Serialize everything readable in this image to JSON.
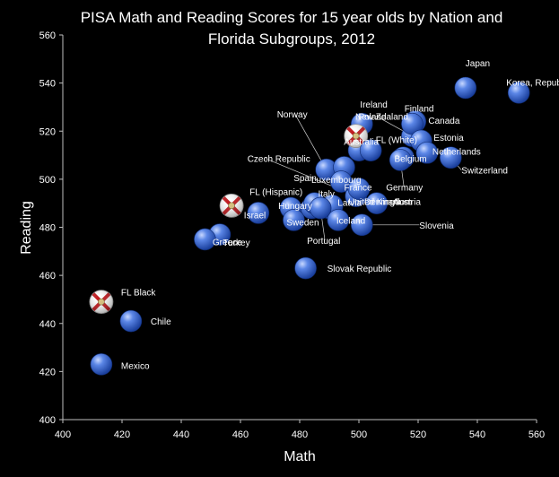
{
  "chart_data": {
    "type": "scatter",
    "title": "PISA Math and Reading Scores for 15 year olds by Nation and",
    "subtitle": "Florida Subgroups, 2012",
    "xlabel": "Math",
    "ylabel": "Reading",
    "xlim": [
      400,
      560
    ],
    "ylim": [
      400,
      560
    ],
    "xticks": [
      400,
      420,
      440,
      460,
      480,
      500,
      520,
      540,
      560
    ],
    "yticks": [
      400,
      420,
      440,
      460,
      480,
      500,
      520,
      540,
      560
    ],
    "grid": false,
    "legend": "none",
    "colors": {
      "point": "#3f6fd8",
      "flag_white": "#ffffff",
      "flag_red": "#c0161b",
      "background": "#000000"
    },
    "points": [
      {
        "label": "Japan",
        "x": 536,
        "y": 538,
        "type": "nation"
      },
      {
        "label": "Korea, Republic of",
        "x": 554,
        "y": 536,
        "type": "nation"
      },
      {
        "label": "Poland",
        "x": 518,
        "y": 518,
        "type": "nation"
      },
      {
        "label": "New Zealand",
        "x": 500,
        "y": 512,
        "type": "nation"
      },
      {
        "label": "Finland",
        "x": 519,
        "y": 524,
        "type": "nation"
      },
      {
        "label": "Ireland",
        "x": 501,
        "y": 523,
        "type": "nation"
      },
      {
        "label": "Canada",
        "x": 518,
        "y": 523,
        "type": "nation"
      },
      {
        "label": "FL (White)",
        "x": 499,
        "y": 518,
        "type": "florida"
      },
      {
        "label": "Estonia",
        "x": 521,
        "y": 516,
        "type": "nation"
      },
      {
        "label": "Netherlands",
        "x": 523,
        "y": 511,
        "type": "nation"
      },
      {
        "label": "Australia",
        "x": 504,
        "y": 512,
        "type": "nation"
      },
      {
        "label": "Belgium",
        "x": 515,
        "y": 509,
        "type": "nation"
      },
      {
        "label": "Switzerland",
        "x": 531,
        "y": 509,
        "type": "nation"
      },
      {
        "label": "Norway",
        "x": 489,
        "y": 504,
        "type": "nation"
      },
      {
        "label": "Czech Republic",
        "x": 499,
        "y": 493,
        "type": "nation"
      },
      {
        "label": "France",
        "x": 495,
        "y": 505,
        "type": "nation"
      },
      {
        "label": "Germany",
        "x": 514,
        "y": 508,
        "type": "nation"
      },
      {
        "label": "United Kingdom",
        "x": 494,
        "y": 499,
        "type": "nation"
      },
      {
        "label": "Denmark",
        "x": 500,
        "y": 496,
        "type": "nation"
      },
      {
        "label": "Spain",
        "x": 484,
        "y": 488,
        "type": "nation"
      },
      {
        "label": "Luxembourg",
        "x": 490,
        "y": 488,
        "type": "nation"
      },
      {
        "label": "FL (Hispanic)",
        "x": 457,
        "y": 489,
        "type": "florida"
      },
      {
        "label": "Italy",
        "x": 485,
        "y": 490,
        "type": "nation"
      },
      {
        "label": "Latvia",
        "x": 491,
        "y": 489,
        "type": "nation"
      },
      {
        "label": "Austria",
        "x": 506,
        "y": 490,
        "type": "nation"
      },
      {
        "label": "Hungary",
        "x": 477,
        "y": 488,
        "type": "nation"
      },
      {
        "label": "Israel",
        "x": 466,
        "y": 486,
        "type": "nation"
      },
      {
        "label": "Sweden",
        "x": 478,
        "y": 483,
        "type": "nation"
      },
      {
        "label": "Iceland",
        "x": 493,
        "y": 483,
        "type": "nation"
      },
      {
        "label": "Slovenia",
        "x": 501,
        "y": 481,
        "type": "nation"
      },
      {
        "label": "Greece",
        "x": 453,
        "y": 477,
        "type": "nation"
      },
      {
        "label": "Portugal",
        "x": 487,
        "y": 488,
        "type": "nation"
      },
      {
        "label": "Turkey",
        "x": 448,
        "y": 475,
        "type": "nation"
      },
      {
        "label": "Slovak Republic",
        "x": 482,
        "y": 463,
        "type": "nation"
      },
      {
        "label": "FL Black",
        "x": 413,
        "y": 449,
        "type": "florida"
      },
      {
        "label": "Chile",
        "x": 423,
        "y": 441,
        "type": "nation"
      },
      {
        "label": "Mexico",
        "x": 413,
        "y": 423,
        "type": "nation"
      }
    ]
  }
}
